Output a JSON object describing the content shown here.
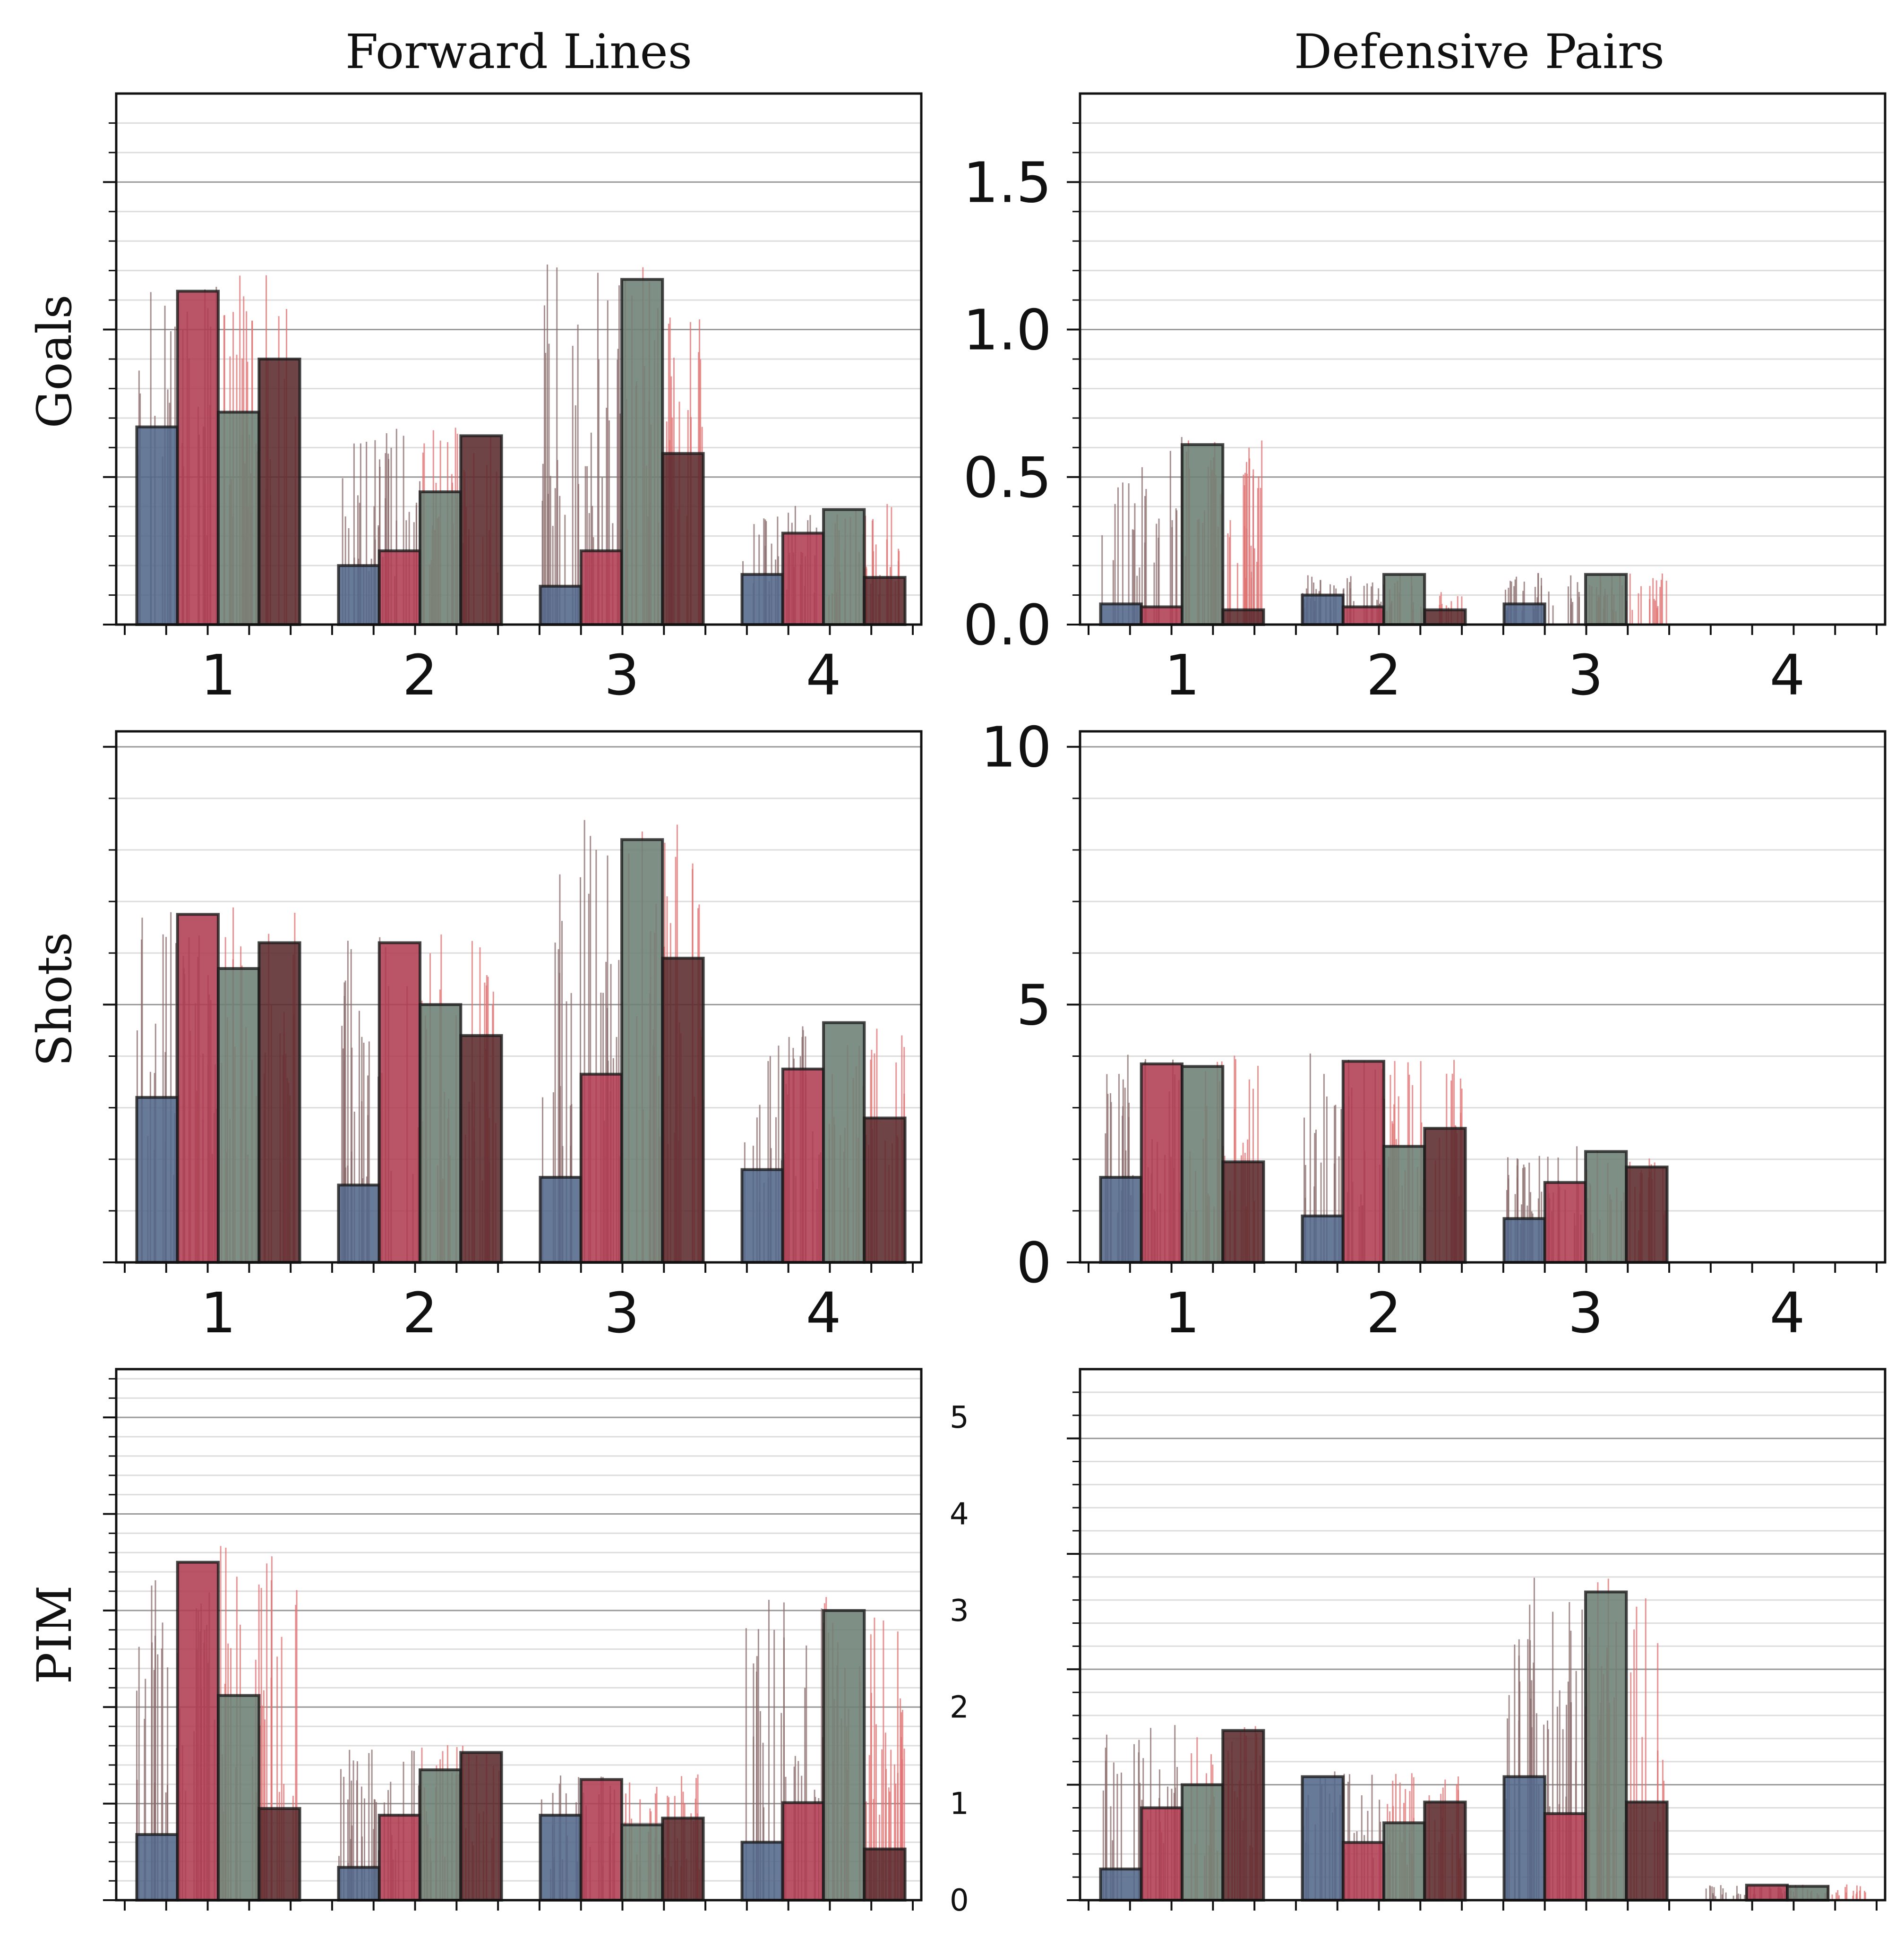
{
  "figure": {
    "col_titles": [
      "Forward Lines",
      "Defensive Pairs"
    ],
    "row_labels": [
      "Goals",
      "Shots",
      "PIM"
    ]
  },
  "style": {
    "series_colors": [
      "#52688a",
      "#b03c52",
      "#6c7f74",
      "#5b2a2d"
    ],
    "spike_colors": [
      "#8a6a6a",
      "#e07070"
    ],
    "grid_major": "#9a9a9a",
    "grid_minor": "#dddddd"
  },
  "chart_data": [
    {
      "type": "bar",
      "title": "Forward Lines",
      "ylabel": "Goals",
      "categories": [
        "1",
        "2",
        "3",
        "4"
      ],
      "series": [
        {
          "values": [
            0.67,
            0.2,
            0.13,
            0.17
          ]
        },
        {
          "values": [
            1.13,
            0.25,
            0.25,
            0.31
          ]
        },
        {
          "values": [
            0.72,
            0.45,
            1.17,
            0.39
          ]
        },
        {
          "values": [
            0.9,
            0.64,
            0.58,
            0.16
          ]
        }
      ],
      "ylim": [
        0,
        1.8
      ],
      "yticks": [
        0,
        0.5,
        1.0,
        1.5
      ],
      "show_xtick_labels": true,
      "show_ytick_labels": false,
      "grid": true
    },
    {
      "type": "bar",
      "title": "Defensive Pairs",
      "ylabel": "",
      "categories": [
        "1",
        "2",
        "3",
        "4"
      ],
      "series": [
        {
          "values": [
            0.07,
            0.1,
            0.07,
            0.0
          ]
        },
        {
          "values": [
            0.06,
            0.06,
            0.0,
            0.0
          ]
        },
        {
          "values": [
            0.61,
            0.17,
            0.17,
            0.0
          ]
        },
        {
          "values": [
            0.05,
            0.05,
            0.0,
            0.0
          ]
        }
      ],
      "ylim": [
        0,
        1.8
      ],
      "yticks": [
        0,
        0.5,
        1.0,
        1.5
      ],
      "ytick_labels": [
        "0.0",
        "0.5",
        "1.0",
        "1.5"
      ],
      "show_xtick_labels": true,
      "show_ytick_labels": true,
      "grid": true
    },
    {
      "type": "bar",
      "title": "",
      "ylabel": "Shots",
      "categories": [
        "1",
        "2",
        "3",
        "4"
      ],
      "series": [
        {
          "values": [
            3.2,
            1.5,
            1.65,
            1.8
          ]
        },
        {
          "values": [
            6.75,
            6.2,
            3.65,
            3.75
          ]
        },
        {
          "values": [
            5.7,
            5.0,
            8.2,
            4.65
          ]
        },
        {
          "values": [
            6.2,
            4.4,
            5.9,
            2.8
          ]
        }
      ],
      "ylim": [
        0,
        10.3
      ],
      "yticks": [
        0,
        5,
        10
      ],
      "show_xtick_labels": true,
      "show_ytick_labels": false,
      "grid": true
    },
    {
      "type": "bar",
      "title": "",
      "ylabel": "",
      "categories": [
        "1",
        "2",
        "3",
        "4"
      ],
      "series": [
        {
          "values": [
            1.65,
            0.9,
            0.85,
            0.0
          ]
        },
        {
          "values": [
            3.85,
            3.9,
            1.55,
            0.0
          ]
        },
        {
          "values": [
            3.8,
            2.25,
            2.15,
            0.0
          ]
        },
        {
          "values": [
            1.95,
            2.6,
            1.85,
            0.0
          ]
        }
      ],
      "ylim": [
        0,
        10.3
      ],
      "yticks": [
        0,
        5,
        10
      ],
      "ytick_labels": [
        "0",
        "5",
        "10"
      ],
      "show_xtick_labels": true,
      "show_ytick_labels": true,
      "grid": true
    },
    {
      "type": "bar",
      "title": "",
      "ylabel": "PIM",
      "categories": [
        "1",
        "2",
        "3",
        "4"
      ],
      "series": [
        {
          "values": [
            0.68,
            0.34,
            0.88,
            0.6
          ]
        },
        {
          "values": [
            3.5,
            0.88,
            1.25,
            1.01
          ]
        },
        {
          "values": [
            2.12,
            1.35,
            0.78,
            3.0
          ]
        },
        {
          "values": [
            0.95,
            1.53,
            0.85,
            0.53
          ]
        }
      ],
      "ylim": [
        0,
        5.5
      ],
      "yticks": [
        0,
        1,
        2,
        3,
        4,
        5
      ],
      "ytick_labels": [
        "0",
        "1",
        "2",
        "3",
        "4",
        "5"
      ],
      "show_xtick_labels": false,
      "show_ytick_labels": false,
      "grid": true
    },
    {
      "type": "bar",
      "title": "",
      "ylabel": "",
      "categories": [
        "1",
        "2",
        "3",
        "4"
      ],
      "series": [
        {
          "values": [
            0.27,
            1.07,
            1.07,
            0.0
          ]
        },
        {
          "values": [
            0.8,
            0.5,
            0.75,
            0.13
          ]
        },
        {
          "values": [
            1.0,
            0.67,
            2.67,
            0.12
          ]
        },
        {
          "values": [
            1.47,
            0.85,
            0.85,
            0.0
          ]
        }
      ],
      "ylim": [
        0,
        4.6
      ],
      "yticks": [
        0,
        1,
        2,
        3,
        4
      ],
      "show_xtick_labels": false,
      "show_ytick_labels": false,
      "grid": true
    }
  ],
  "shared_axis_labels": {
    "pim_left_ticks": [
      "0",
      "1",
      "2",
      "3",
      "4",
      "5"
    ]
  }
}
